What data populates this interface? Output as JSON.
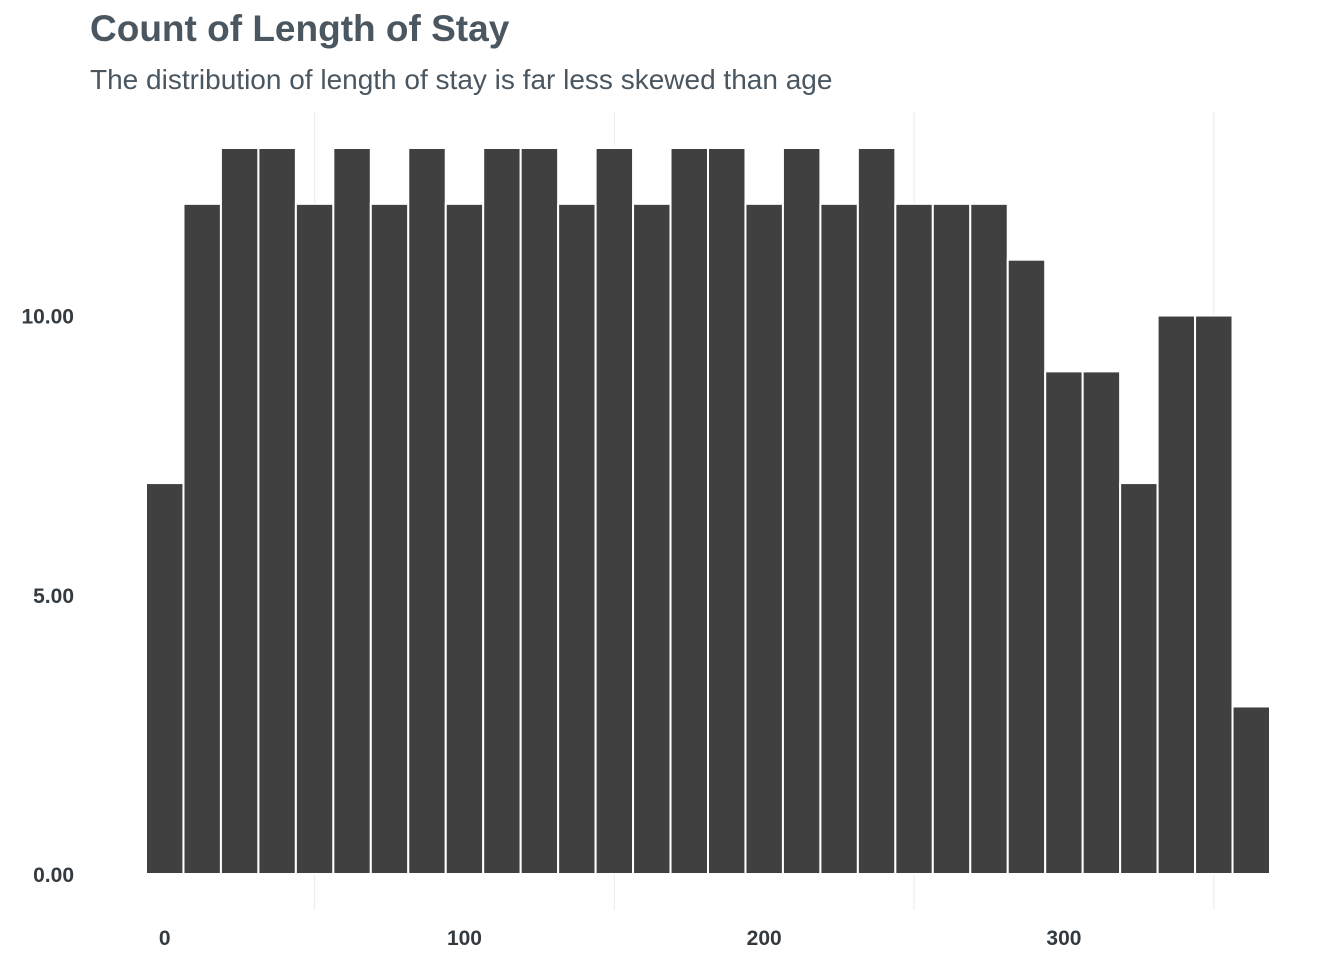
{
  "chart_data": {
    "type": "bar",
    "title": "Count of Length of Stay",
    "subtitle": "The distribution of length of stay is far less skewed than age",
    "xlabel": "",
    "ylabel": "",
    "bin_width": 12.5,
    "bins_start": -6.25,
    "x": [
      0,
      12.5,
      25,
      37.5,
      50,
      62.5,
      75,
      87.5,
      100,
      112.5,
      125,
      137.5,
      150,
      162.5,
      175,
      187.5,
      200,
      212.5,
      225,
      237.5,
      250,
      262.5,
      275,
      287.5,
      300,
      312.5,
      325,
      337.5,
      350,
      362.5
    ],
    "values": [
      7,
      12,
      13,
      13,
      12,
      13,
      12,
      13,
      12,
      13,
      13,
      12,
      13,
      12,
      13,
      13,
      12,
      13,
      12,
      13,
      12,
      12,
      12,
      11,
      9,
      9,
      7,
      10,
      10,
      3
    ],
    "xlim": [
      -6.25,
      368.75
    ],
    "ylim": [
      0,
      13
    ],
    "x_ticks": [
      0,
      100,
      200,
      300
    ],
    "x_tick_labels": [
      "0",
      "100",
      "200",
      "300"
    ],
    "y_ticks": [
      0,
      5,
      10
    ],
    "y_tick_labels": [
      "0.00",
      "5.00",
      "10.00"
    ],
    "x_minor_gridlines": [
      50,
      150,
      250,
      350
    ],
    "grid": true,
    "legend": "none",
    "bar_color": "#404040",
    "bar_edge_color": "#ffffff",
    "grid_color": "#ebebeb",
    "title_color": "#4a5660",
    "tick_label_color": "#333a40"
  }
}
